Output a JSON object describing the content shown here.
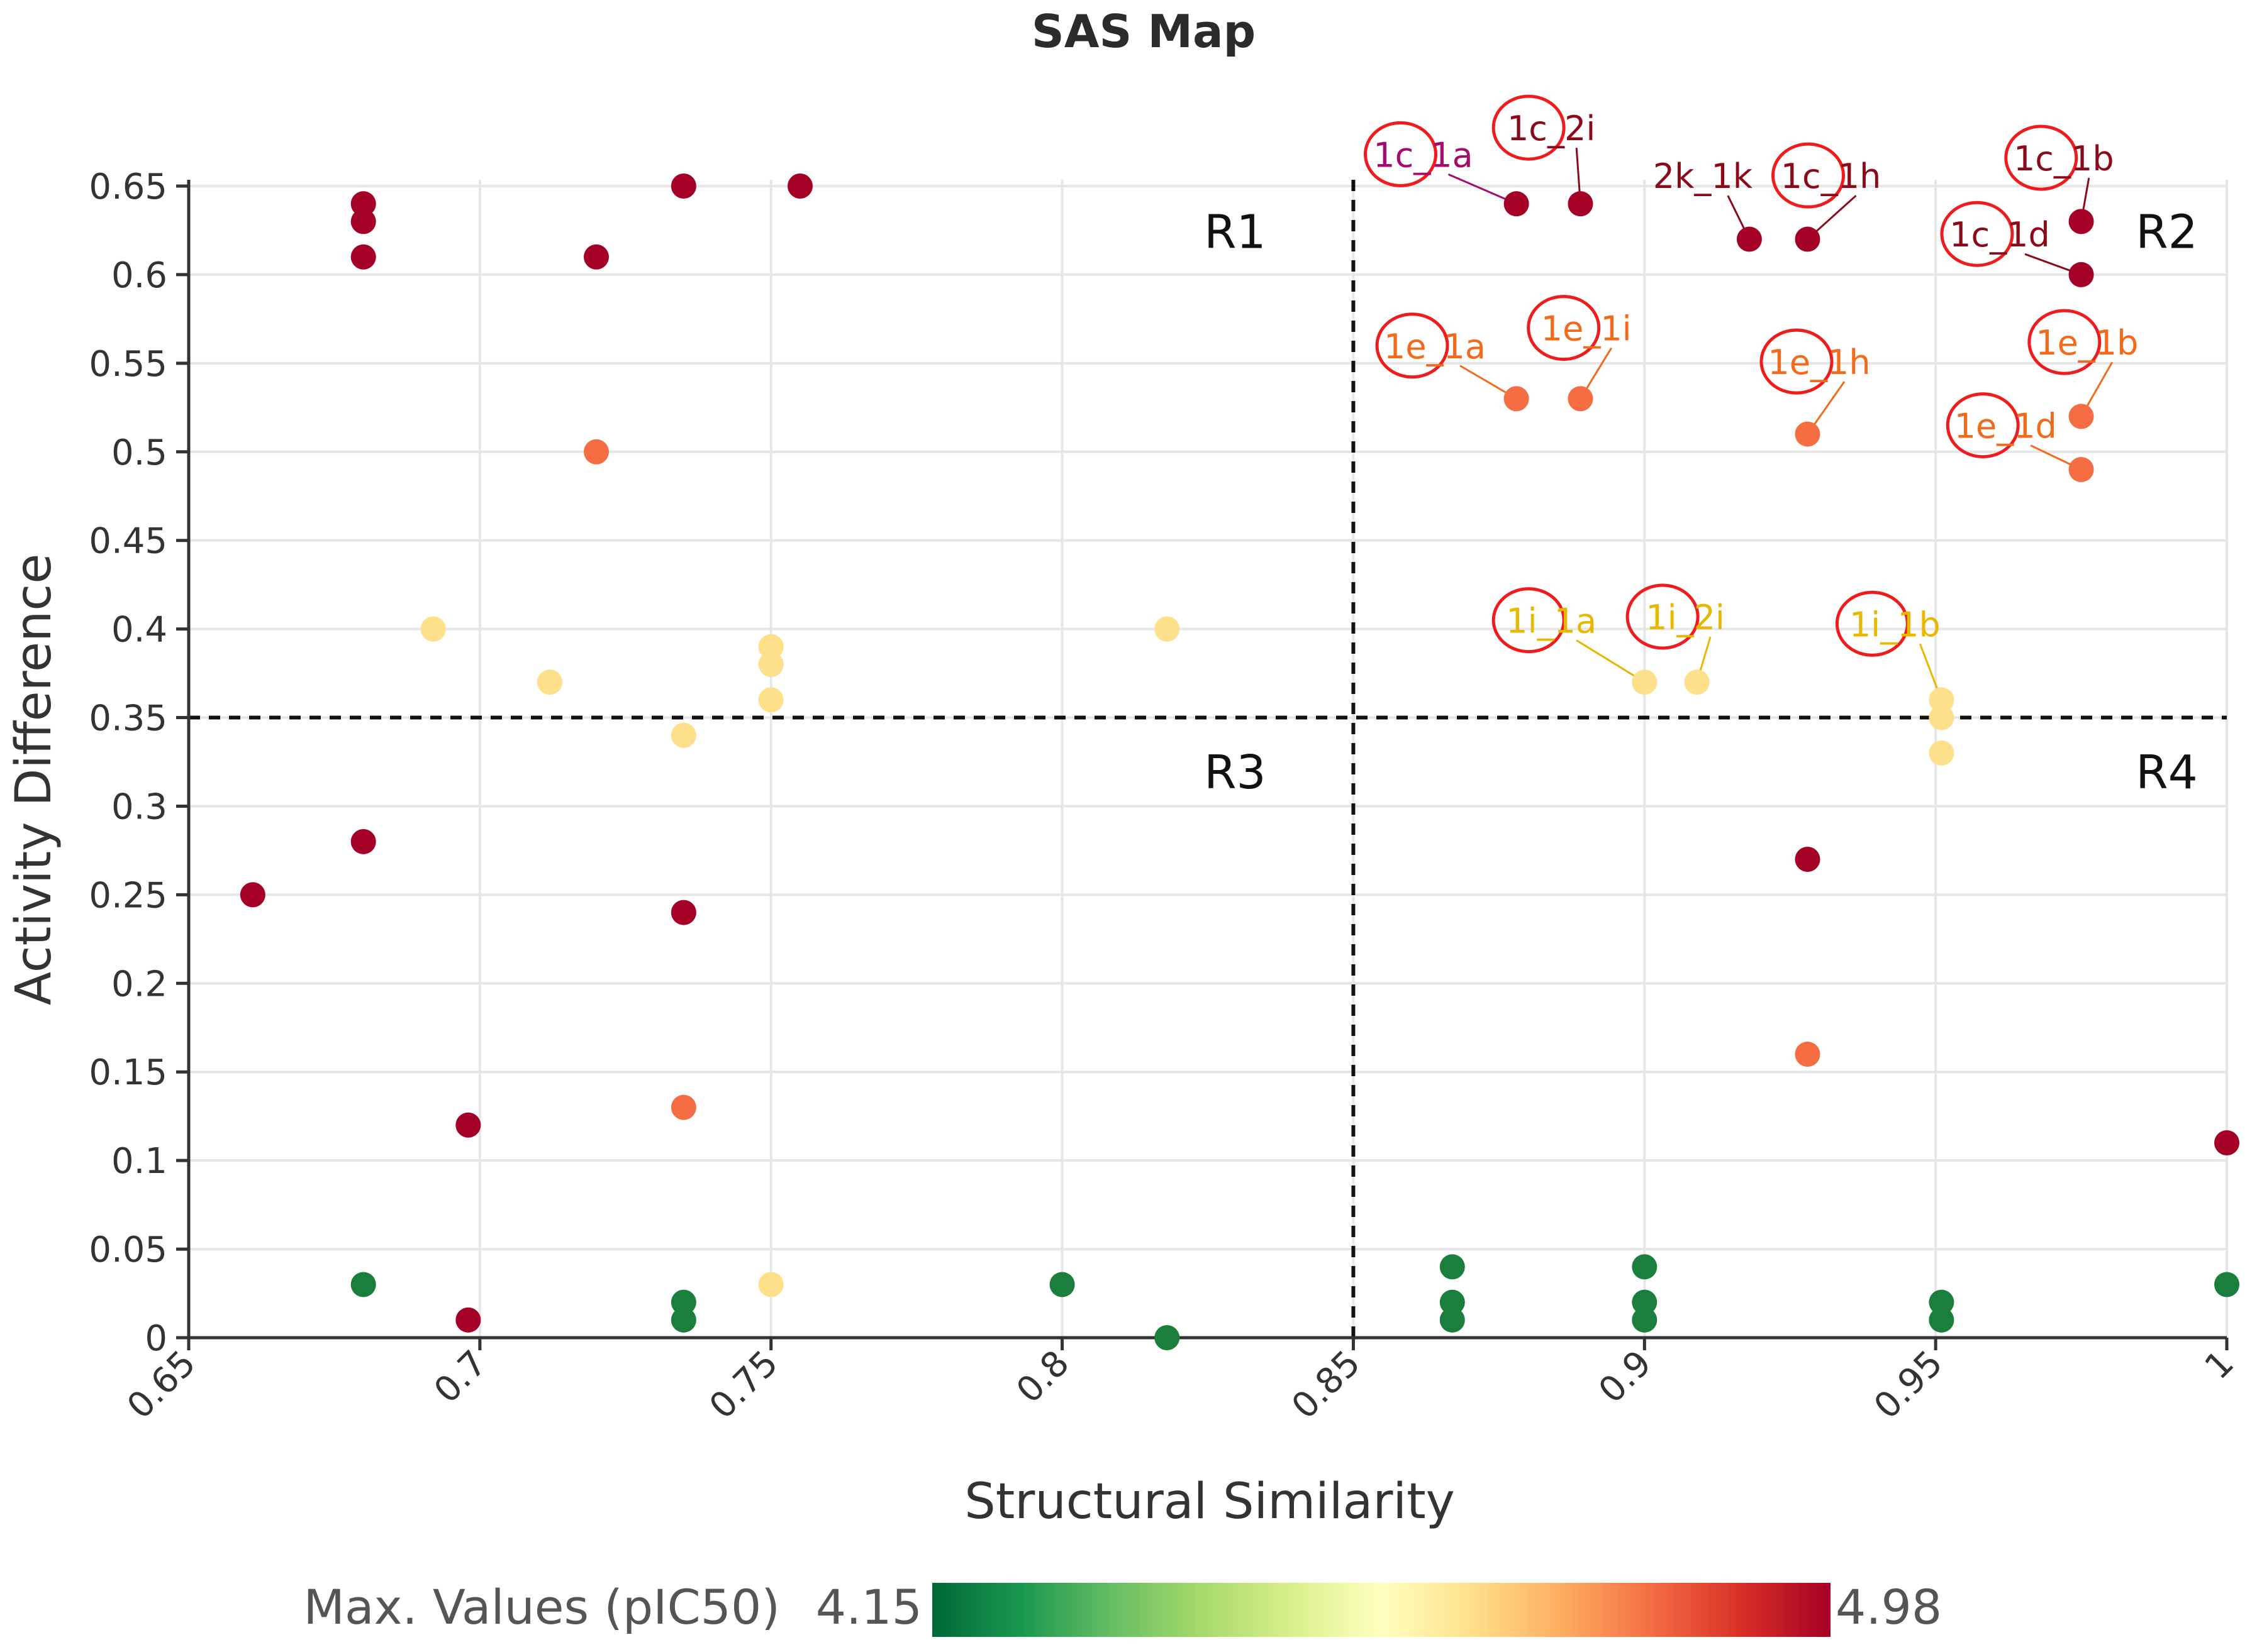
{
  "chart_data": {
    "type": "scatter",
    "title": "SAS Map",
    "xlabel": "Structural Similarity",
    "ylabel": "Activity Difference",
    "xlim": [
      0.65,
      1.0
    ],
    "ylim": [
      0,
      0.65
    ],
    "x_ticks": [
      0.65,
      0.7,
      0.75,
      0.8,
      0.85,
      0.9,
      0.95,
      1.0
    ],
    "x_tick_labels": [
      "0.65",
      "0.7",
      "0.75",
      "0.8",
      "0.85",
      "0.9",
      "0.95",
      "1"
    ],
    "y_ticks": [
      0,
      0.05,
      0.1,
      0.15,
      0.2,
      0.25,
      0.3,
      0.35,
      0.4,
      0.45,
      0.5,
      0.55,
      0.6,
      0.65
    ],
    "y_tick_labels": [
      "0",
      "0.05",
      "0.1",
      "0.15",
      "0.2",
      "0.25",
      "0.3",
      "0.35",
      "0.4",
      "0.45",
      "0.5",
      "0.55",
      "0.6",
      "0.65"
    ],
    "grid": true,
    "thresholds": {
      "x": 0.85,
      "y": 0.35
    },
    "regions": [
      {
        "label": "R1",
        "x": 0.835,
        "y": 0.625
      },
      {
        "label": "R2",
        "x": 0.995,
        "y": 0.625
      },
      {
        "label": "R3",
        "x": 0.835,
        "y": 0.32
      },
      {
        "label": "R4",
        "x": 0.995,
        "y": 0.32
      }
    ],
    "colorbar": {
      "label": "Max. Values (pIC50)",
      "min": 4.15,
      "max": 4.98,
      "min_label": "4.15",
      "max_label": "4.98",
      "colors": [
        "#006837",
        "#1a9850",
        "#66bd63",
        "#a6d96a",
        "#d9ef8b",
        "#ffffbf",
        "#fee08b",
        "#fdae61",
        "#f46d43",
        "#d73027",
        "#a50026"
      ]
    },
    "points": [
      {
        "x": 0.68,
        "y": 0.64,
        "color": "#a50026"
      },
      {
        "x": 0.68,
        "y": 0.63,
        "color": "#a50026"
      },
      {
        "x": 0.68,
        "y": 0.61,
        "color": "#a50026"
      },
      {
        "x": 0.735,
        "y": 0.65,
        "color": "#a50026"
      },
      {
        "x": 0.755,
        "y": 0.65,
        "color": "#a50026"
      },
      {
        "x": 0.72,
        "y": 0.61,
        "color": "#a50026"
      },
      {
        "x": 0.72,
        "y": 0.5,
        "color": "#f46d43"
      },
      {
        "x": 0.692,
        "y": 0.4,
        "color": "#fee08b"
      },
      {
        "x": 0.712,
        "y": 0.37,
        "color": "#fee08b"
      },
      {
        "x": 0.75,
        "y": 0.39,
        "color": "#fee08b"
      },
      {
        "x": 0.75,
        "y": 0.38,
        "color": "#fee08b"
      },
      {
        "x": 0.75,
        "y": 0.36,
        "color": "#fee08b"
      },
      {
        "x": 0.818,
        "y": 0.4,
        "color": "#fee08b"
      },
      {
        "x": 0.735,
        "y": 0.34,
        "color": "#fee08b"
      },
      {
        "x": 0.68,
        "y": 0.28,
        "color": "#a50026"
      },
      {
        "x": 0.661,
        "y": 0.25,
        "color": "#a50026"
      },
      {
        "x": 0.735,
        "y": 0.24,
        "color": "#a50026"
      },
      {
        "x": 0.735,
        "y": 0.13,
        "color": "#f46d43"
      },
      {
        "x": 0.698,
        "y": 0.12,
        "color": "#a50026"
      },
      {
        "x": 0.68,
        "y": 0.03,
        "color": "#1a7f3c"
      },
      {
        "x": 0.698,
        "y": 0.01,
        "color": "#a50026"
      },
      {
        "x": 0.735,
        "y": 0.02,
        "color": "#1a7f3c"
      },
      {
        "x": 0.735,
        "y": 0.01,
        "color": "#1a7f3c"
      },
      {
        "x": 0.75,
        "y": 0.03,
        "color": "#fee08b"
      },
      {
        "x": 0.8,
        "y": 0.03,
        "color": "#1a7f3c"
      },
      {
        "x": 0.818,
        "y": 0.0,
        "color": "#1a7f3c"
      },
      {
        "x": 0.878,
        "y": 0.64,
        "color": "#a50026"
      },
      {
        "x": 0.889,
        "y": 0.64,
        "color": "#a50026"
      },
      {
        "x": 0.918,
        "y": 0.62,
        "color": "#a50026"
      },
      {
        "x": 0.928,
        "y": 0.62,
        "color": "#a50026"
      },
      {
        "x": 0.975,
        "y": 0.63,
        "color": "#a50026"
      },
      {
        "x": 0.975,
        "y": 0.6,
        "color": "#a50026"
      },
      {
        "x": 0.878,
        "y": 0.53,
        "color": "#f46d43"
      },
      {
        "x": 0.889,
        "y": 0.53,
        "color": "#f46d43"
      },
      {
        "x": 0.928,
        "y": 0.51,
        "color": "#f46d43"
      },
      {
        "x": 0.975,
        "y": 0.52,
        "color": "#f46d43"
      },
      {
        "x": 0.975,
        "y": 0.49,
        "color": "#f46d43"
      },
      {
        "x": 0.9,
        "y": 0.37,
        "color": "#fee08b"
      },
      {
        "x": 0.909,
        "y": 0.37,
        "color": "#fee08b"
      },
      {
        "x": 0.951,
        "y": 0.36,
        "color": "#fee08b"
      },
      {
        "x": 0.951,
        "y": 0.35,
        "color": "#fee08b"
      },
      {
        "x": 0.951,
        "y": 0.33,
        "color": "#fee08b"
      },
      {
        "x": 0.928,
        "y": 0.27,
        "color": "#a50026"
      },
      {
        "x": 0.928,
        "y": 0.16,
        "color": "#f46d43"
      },
      {
        "x": 1.0,
        "y": 0.11,
        "color": "#a50026"
      },
      {
        "x": 0.867,
        "y": 0.04,
        "color": "#1a7f3c"
      },
      {
        "x": 0.867,
        "y": 0.02,
        "color": "#1a7f3c"
      },
      {
        "x": 0.867,
        "y": 0.01,
        "color": "#1a7f3c"
      },
      {
        "x": 0.9,
        "y": 0.04,
        "color": "#1a7f3c"
      },
      {
        "x": 0.9,
        "y": 0.02,
        "color": "#1a7f3c"
      },
      {
        "x": 0.9,
        "y": 0.01,
        "color": "#1a7f3c"
      },
      {
        "x": 0.951,
        "y": 0.02,
        "color": "#1a7f3c"
      },
      {
        "x": 0.951,
        "y": 0.01,
        "color": "#1a7f3c"
      },
      {
        "x": 1.0,
        "y": 0.03,
        "color": "#1a7f3c"
      }
    ],
    "annotations": [
      {
        "text": "1c_1a",
        "x": 0.862,
        "y": 0.663,
        "px": 0.878,
        "py": 0.64,
        "color": "#a50a6e",
        "circled": true
      },
      {
        "text": "1c_2i",
        "x": 0.884,
        "y": 0.678,
        "px": 0.889,
        "py": 0.64,
        "color": "#8b0a1a",
        "circled": true
      },
      {
        "text": "2k_1k",
        "x": 0.91,
        "y": 0.651,
        "px": 0.918,
        "py": 0.62,
        "color": "#8b0a1a",
        "circled": false
      },
      {
        "text": "1c_1h",
        "x": 0.932,
        "y": 0.651,
        "px": 0.928,
        "py": 0.62,
        "color": "#8b0a1a",
        "circled": true
      },
      {
        "text": "1c_1b",
        "x": 0.972,
        "y": 0.661,
        "px": 0.975,
        "py": 0.63,
        "color": "#8b0a1a",
        "circled": true
      },
      {
        "text": "1c_1d",
        "x": 0.961,
        "y": 0.618,
        "px": 0.975,
        "py": 0.6,
        "color": "#8b0a1a",
        "circled": true
      },
      {
        "text": "1e_1a",
        "x": 0.864,
        "y": 0.555,
        "px": 0.878,
        "py": 0.53,
        "color": "#f26a1b",
        "circled": true
      },
      {
        "text": "1e_1i",
        "x": 0.89,
        "y": 0.565,
        "px": 0.889,
        "py": 0.53,
        "color": "#f26a1b",
        "circled": true
      },
      {
        "text": "1e_1h",
        "x": 0.93,
        "y": 0.546,
        "px": 0.928,
        "py": 0.51,
        "color": "#f26a1b",
        "circled": true
      },
      {
        "text": "1e_1b",
        "x": 0.976,
        "y": 0.557,
        "px": 0.975,
        "py": 0.52,
        "color": "#f26a1b",
        "circled": true
      },
      {
        "text": "1e_1d",
        "x": 0.962,
        "y": 0.51,
        "px": 0.975,
        "py": 0.49,
        "color": "#f26a1b",
        "circled": true
      },
      {
        "text": "1i_1a",
        "x": 0.884,
        "y": 0.4,
        "px": 0.9,
        "py": 0.37,
        "color": "#e8b800",
        "circled": true
      },
      {
        "text": "1i_2i",
        "x": 0.907,
        "y": 0.402,
        "px": 0.909,
        "py": 0.37,
        "color": "#e8b800",
        "circled": true
      },
      {
        "text": "1i_1b",
        "x": 0.943,
        "y": 0.398,
        "px": 0.951,
        "py": 0.36,
        "color": "#e8b800",
        "circled": true
      }
    ]
  }
}
